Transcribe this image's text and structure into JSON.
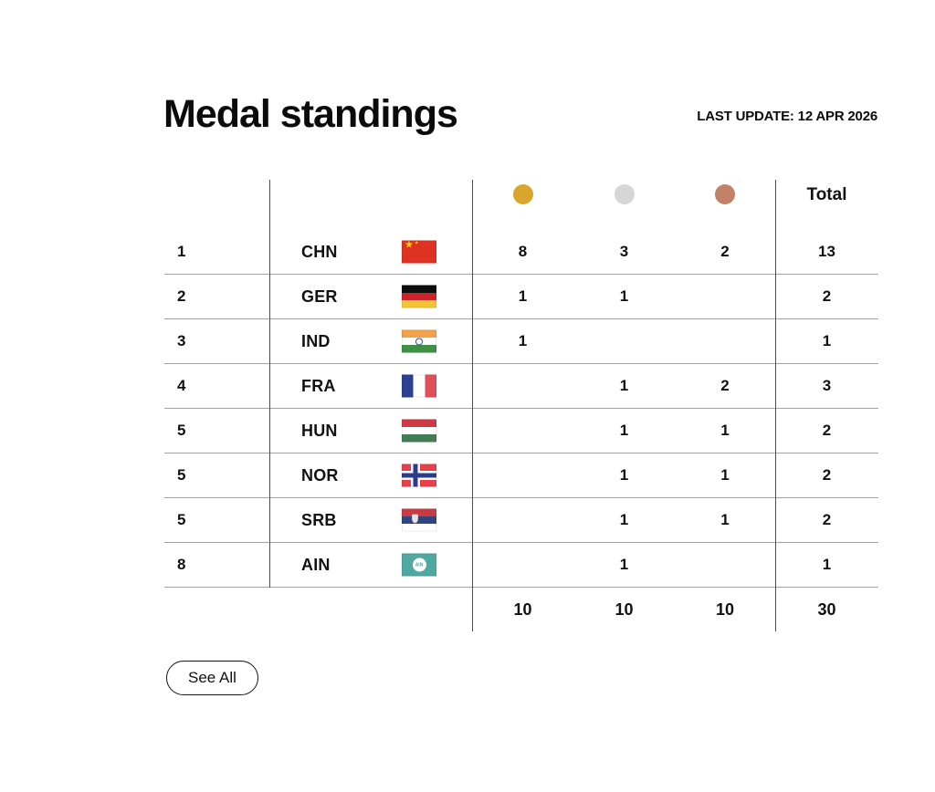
{
  "header": {
    "title": "Medal standings",
    "last_update": "LAST UPDATE: 12 APR 2026"
  },
  "table": {
    "column_icons": {
      "gold": "gold-medal-icon",
      "silver": "silver-medal-icon",
      "bronze": "bronze-medal-icon"
    },
    "colors": {
      "gold": "#d9a62b",
      "silver": "#d6d6d6",
      "bronze": "#c28268"
    },
    "total_label": "Total",
    "rows": [
      {
        "rank": "1",
        "code": "CHN",
        "flag_icon": "flag-chn-icon",
        "flag_class": "flag flag-chn",
        "gold": "8",
        "silver": "3",
        "bronze": "2",
        "total": "13"
      },
      {
        "rank": "2",
        "code": "GER",
        "flag_icon": "flag-ger-icon",
        "flag_class": "flag flag-ger",
        "gold": "1",
        "silver": "1",
        "bronze": "",
        "total": "2"
      },
      {
        "rank": "3",
        "code": "IND",
        "flag_icon": "flag-ind-icon",
        "flag_class": "flag flag-ind",
        "gold": "1",
        "silver": "",
        "bronze": "",
        "total": "1"
      },
      {
        "rank": "4",
        "code": "FRA",
        "flag_icon": "flag-fra-icon",
        "flag_class": "flag flag-fra",
        "gold": "",
        "silver": "1",
        "bronze": "2",
        "total": "3"
      },
      {
        "rank": "5",
        "code": "HUN",
        "flag_icon": "flag-hun-icon",
        "flag_class": "flag flag-hun",
        "gold": "",
        "silver": "1",
        "bronze": "1",
        "total": "2"
      },
      {
        "rank": "5",
        "code": "NOR",
        "flag_icon": "flag-nor-icon",
        "flag_class": "flag flag-nor",
        "gold": "",
        "silver": "1",
        "bronze": "1",
        "total": "2"
      },
      {
        "rank": "5",
        "code": "SRB",
        "flag_icon": "flag-srb-icon",
        "flag_class": "flag flag-srb",
        "gold": "",
        "silver": "1",
        "bronze": "1",
        "total": "2"
      },
      {
        "rank": "8",
        "code": "AIN",
        "flag_icon": "flag-ain-icon",
        "flag_class": "flag flag-ain",
        "gold": "",
        "silver": "1",
        "bronze": "",
        "total": "1"
      }
    ],
    "totals": {
      "gold": "10",
      "silver": "10",
      "bronze": "10",
      "total": "30"
    }
  },
  "footer": {
    "see_all_label": "See All"
  }
}
